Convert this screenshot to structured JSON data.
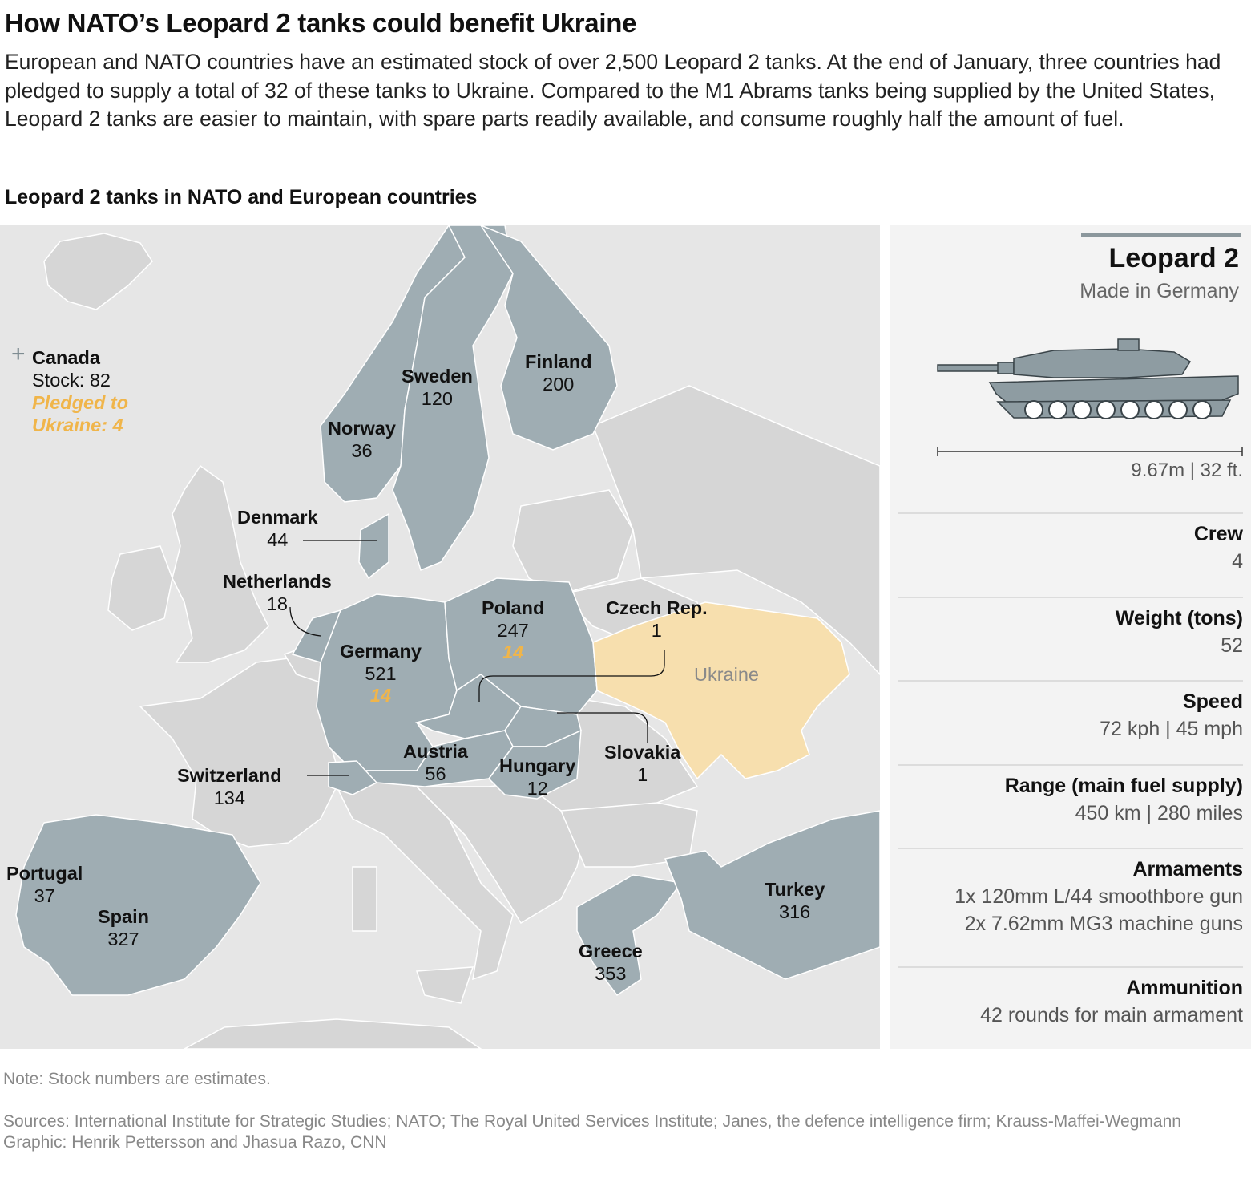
{
  "title": "How NATO’s Leopard 2 tanks could benefit Ukraine",
  "intro": "European and NATO countries have an estimated stock of over 2,500 Leopard 2 tanks. At the end of January, three countries had pledged to supply a total of 32 of these tanks to Ukraine. Compared to the M1 Abrams tanks being supplied by the United States, Leopard 2 tanks are easier to maintain, with spare parts readily available, and consume roughly half the amount of fuel.",
  "map_title": "Leopard 2 tanks in NATO and European countries",
  "colors": {
    "holder": "#9fadb3",
    "other_land": "#d6d6d6",
    "sea": "#e6e6e6",
    "ukraine": "#f7dfae",
    "pledged": "#f0b54a",
    "border": "#ffffff"
  },
  "canada": {
    "name": "Canada",
    "stock": "Stock: 82",
    "pledged_line1": "Pledged to",
    "pledged_line2": "Ukraine: 4"
  },
  "ukraine_label": "Ukraine",
  "countries": [
    {
      "name": "Finland",
      "stock": "200"
    },
    {
      "name": "Sweden",
      "stock": "120"
    },
    {
      "name": "Norway",
      "stock": "36"
    },
    {
      "name": "Denmark",
      "stock": "44"
    },
    {
      "name": "Netherlands",
      "stock": "18"
    },
    {
      "name": "Poland",
      "stock": "247",
      "pledged": "14"
    },
    {
      "name": "Czech Rep.",
      "stock": "1"
    },
    {
      "name": "Germany",
      "stock": "521",
      "pledged": "14"
    },
    {
      "name": "Austria",
      "stock": "56"
    },
    {
      "name": "Hungary",
      "stock": "12"
    },
    {
      "name": "Slovakia",
      "stock": "1"
    },
    {
      "name": "Switzerland",
      "stock": "134"
    },
    {
      "name": "Portugal",
      "stock": "37"
    },
    {
      "name": "Spain",
      "stock": "327"
    },
    {
      "name": "Greece",
      "stock": "353"
    },
    {
      "name": "Turkey",
      "stock": "316"
    }
  ],
  "panel": {
    "name": "Leopard 2",
    "origin": "Made in Germany",
    "length": "9.67m | 32 ft.",
    "specs": [
      {
        "label": "Crew",
        "value": "4"
      },
      {
        "label": "Weight (tons)",
        "value": "52"
      },
      {
        "label": "Speed",
        "value": "72 kph | 45 mph"
      },
      {
        "label": "Range (main fuel supply)",
        "value": "450 km | 280 miles"
      },
      {
        "label": "Armaments",
        "value": "1x 120mm L/44 smoothbore gun",
        "value2": "2x 7.62mm MG3 machine guns"
      },
      {
        "label": "Ammunition",
        "value": "42 rounds for main armament"
      }
    ]
  },
  "note": "Note: Stock numbers are estimates.",
  "sources": "Sources: International Institute for Strategic Studies; NATO; The Royal United Services Institute; Janes, the defence intelligence firm; Krauss-Maffei-Wegmann",
  "credit": "Graphic: Henrik Pettersson and Jhasua Razo, CNN"
}
